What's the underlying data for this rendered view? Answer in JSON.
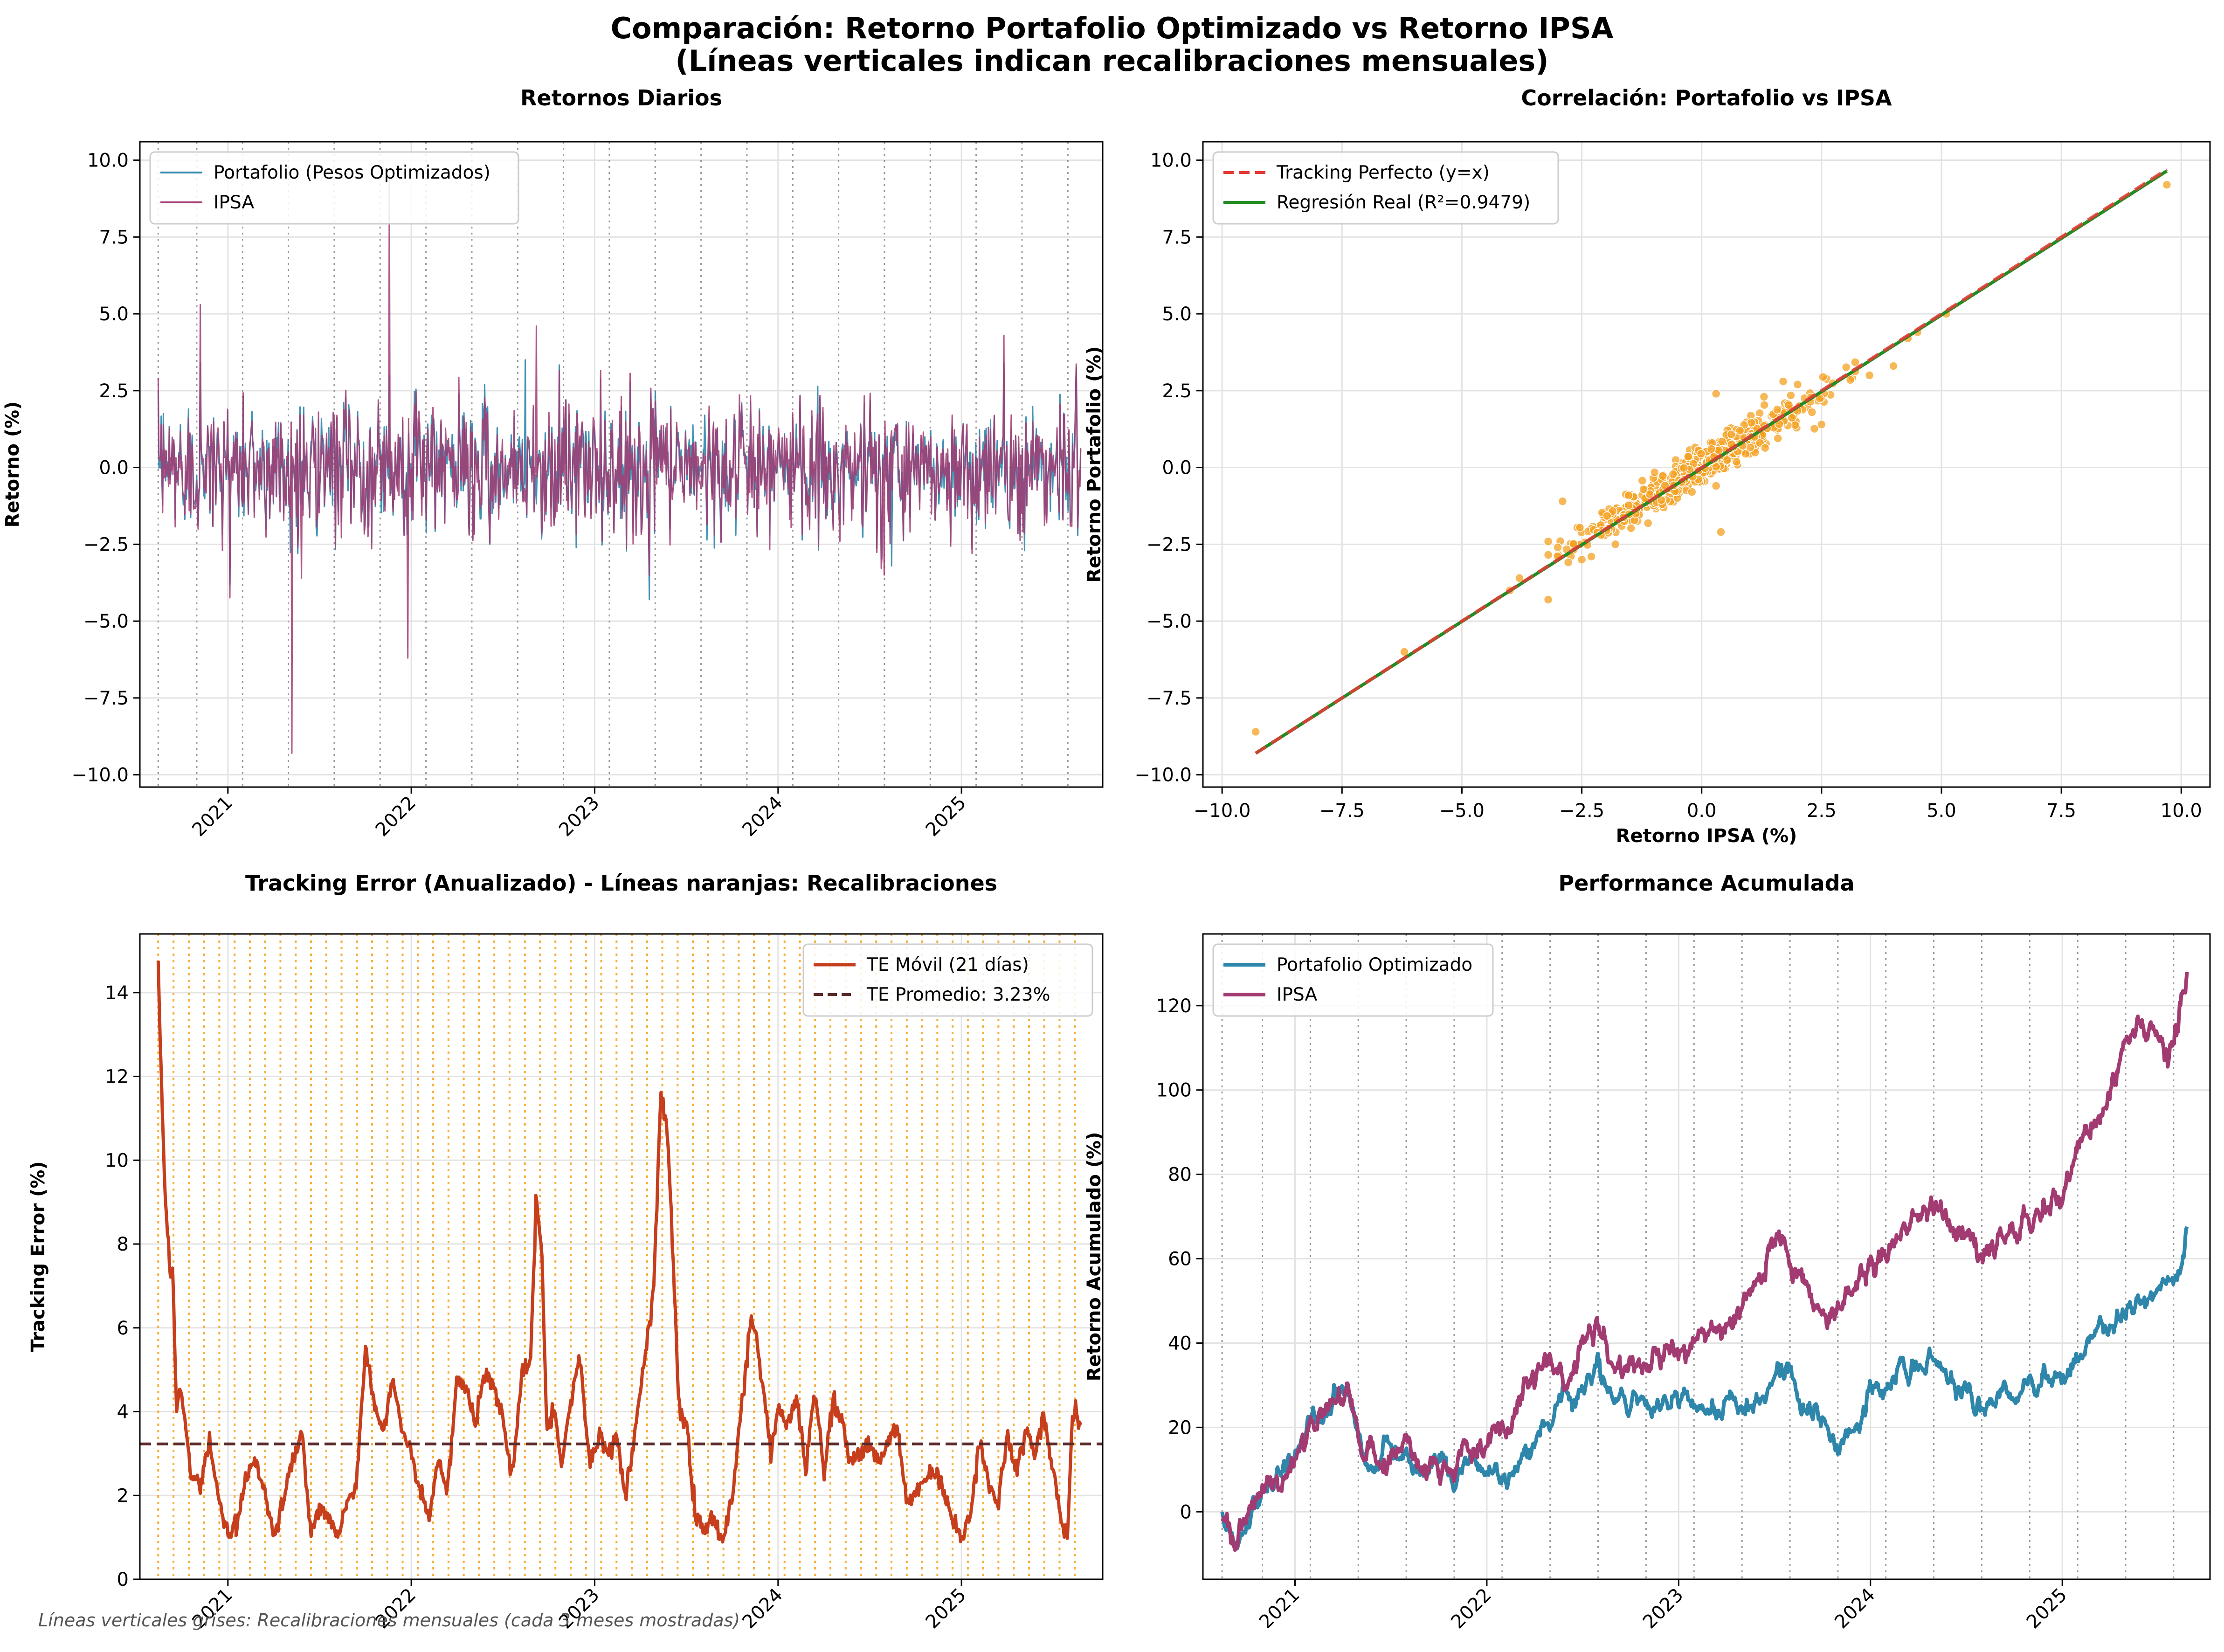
{
  "figure": {
    "suptitle_line1": "Comparación: Retorno Portafolio Optimizado vs Retorno IPSA",
    "suptitle_line2": "(Líneas verticales indican recalibraciones mensuales)",
    "footnote": "Líneas verticales grises: Recalibraciones mensuales (cada 3 meses mostradas)"
  },
  "colors": {
    "portfolio": "#2e86ab",
    "ipsa": "#a23b72",
    "scatter": "#f4a020",
    "tracking_perfect": "#e53935",
    "regression": "#228b22",
    "te_line": "#c73e1d",
    "te_mean": "#5a2a2a",
    "recal_gray": "#999999",
    "recal_orange": "#f5a623"
  },
  "chart_data": [
    {
      "id": "daily",
      "type": "line",
      "title": "Retornos Diarios",
      "xlabel": "",
      "ylabel": "Retorno (%)",
      "xlim": [
        2020.52,
        2025.77
      ],
      "ylim": [
        -10.4,
        10.6
      ],
      "yticks": [
        -10.0,
        -7.5,
        -5.0,
        -2.5,
        0.0,
        2.5,
        5.0,
        7.5,
        10.0
      ],
      "ytick_labels": [
        "−10.0",
        "−7.5",
        "−5.0",
        "−2.5",
        "0.0",
        "2.5",
        "5.0",
        "7.5",
        "10.0"
      ],
      "xticks": [
        2021,
        2022,
        2023,
        2024,
        2025
      ],
      "xtick_labels": [
        "2021",
        "2022",
        "2023",
        "2024",
        "2025"
      ],
      "grid": true,
      "legend": "upper-left",
      "recalibration_lines": [
        2020.62,
        2020.83,
        2021.08,
        2021.33,
        2021.58,
        2021.83,
        2022.08,
        2022.33,
        2022.58,
        2022.83,
        2023.08,
        2023.33,
        2023.58,
        2023.83,
        2024.08,
        2024.33,
        2024.58,
        2024.83,
        2025.08,
        2025.33,
        2025.58
      ],
      "series": [
        {
          "name": "Portafolio (Pesos Optimizados)",
          "color_key": "portfolio",
          "x_start": 2020.62,
          "x_end": 2025.65,
          "count": 1250,
          "volatility": 1.05,
          "spikes": [
            [
              2020.85,
              3.4
            ],
            [
              2021.38,
              -2.8
            ],
            [
              2021.88,
              3.0
            ],
            [
              2022.62,
              3.5
            ],
            [
              2023.3,
              -4.3
            ],
            [
              2023.6,
              1.7
            ],
            [
              2024.62,
              -3.2
            ],
            [
              2025.23,
              3.4
            ]
          ]
        },
        {
          "name": "IPSA",
          "color_key": "ipsa",
          "x_start": 2020.62,
          "x_end": 2025.65,
          "count": 1250,
          "volatility": 1.05,
          "spikes": [
            [
              2020.85,
              5.3
            ],
            [
              2021.35,
              -9.3
            ],
            [
              2021.4,
              -3.6
            ],
            [
              2021.88,
              9.5
            ],
            [
              2021.98,
              -6.2
            ],
            [
              2022.68,
              4.6
            ],
            [
              2023.3,
              -3.5
            ],
            [
              2024.58,
              -3.5
            ],
            [
              2025.23,
              4.3
            ]
          ]
        }
      ]
    },
    {
      "id": "scatter",
      "type": "scatter",
      "title": "Correlación: Portafolio vs IPSA",
      "xlabel": "Retorno IPSA (%)",
      "ylabel": "Retorno Portafolio (%)",
      "xlim": [
        -10.4,
        10.6
      ],
      "ylim": [
        -10.4,
        10.6
      ],
      "xticks": [
        -10.0,
        -7.5,
        -5.0,
        -2.5,
        0.0,
        2.5,
        5.0,
        7.5,
        10.0
      ],
      "xtick_labels": [
        "−10.0",
        "−7.5",
        "−5.0",
        "−2.5",
        "0.0",
        "2.5",
        "5.0",
        "7.5",
        "10.0"
      ],
      "yticks": [
        -10.0,
        -7.5,
        -5.0,
        -2.5,
        0.0,
        2.5,
        5.0,
        7.5,
        10.0
      ],
      "ytick_labels": [
        "−10.0",
        "−7.5",
        "−5.0",
        "−2.5",
        "0.0",
        "2.5",
        "5.0",
        "7.5",
        "10.0"
      ],
      "grid": true,
      "legend": "upper-left",
      "lines": [
        {
          "name": "Tracking Perfecto (y=x)",
          "color_key": "tracking_perfect",
          "style": "dashed",
          "x": [
            -9.3,
            9.7
          ],
          "y": [
            -9.3,
            9.7
          ]
        },
        {
          "name": "Regresión Real (R²=0.9479)",
          "color_key": "regression",
          "style": "solid",
          "x": [
            -9.3,
            9.7
          ],
          "y": [
            -9.3,
            9.65
          ]
        }
      ],
      "cloud": {
        "count": 600,
        "slope": 0.93,
        "x_sd": 1.25,
        "noise_sd": 0.3
      },
      "points": [
        [
          -9.3,
          -8.6
        ],
        [
          -6.2,
          -6.0
        ],
        [
          -4.0,
          -4.0
        ],
        [
          -3.8,
          -3.6
        ],
        [
          -3.2,
          -4.3
        ],
        [
          -3.0,
          -2.6
        ],
        [
          -2.9,
          -1.1
        ],
        [
          -2.5,
          -3.0
        ],
        [
          -2.3,
          -2.9
        ],
        [
          -2.1,
          -2.2
        ],
        [
          -1.8,
          -2.5
        ],
        [
          0.3,
          -0.6
        ],
        [
          0.2,
          0.6
        ],
        [
          0.8,
          1.2
        ],
        [
          0.3,
          2.4
        ],
        [
          0.4,
          -2.1
        ],
        [
          1.3,
          2.3
        ],
        [
          1.7,
          2.8
        ],
        [
          2.0,
          2.7
        ],
        [
          2.5,
          1.4
        ],
        [
          2.3,
          1.8
        ],
        [
          3.5,
          3.0
        ],
        [
          4.0,
          3.3
        ],
        [
          4.3,
          4.2
        ],
        [
          4.5,
          4.4
        ],
        [
          5.1,
          5.0
        ],
        [
          9.7,
          9.2
        ]
      ]
    },
    {
      "id": "te",
      "type": "line",
      "title": "Tracking Error (Anualizado) - Líneas naranjas: Recalibraciones",
      "xlabel": "",
      "ylabel": "Tracking Error (%)",
      "xlim": [
        2020.52,
        2025.77
      ],
      "ylim": [
        0,
        15.4
      ],
      "yticks": [
        0,
        2,
        4,
        6,
        8,
        10,
        12,
        14
      ],
      "ytick_labels": [
        "0",
        "2",
        "4",
        "6",
        "8",
        "10",
        "12",
        "14"
      ],
      "xticks": [
        2021,
        2022,
        2023,
        2024,
        2025
      ],
      "xtick_labels": [
        "2021",
        "2022",
        "2023",
        "2024",
        "2025"
      ],
      "grid": true,
      "legend": "upper-right",
      "recalibration_start": 2020.62,
      "recalibration_step": 0.0833,
      "recalibration_count": 61,
      "mean_te": 3.23,
      "series_names": [
        "TE Móvil (21 días)",
        "TE Promedio: 3.23%"
      ],
      "te_series": {
        "x": [
          2020.62,
          2020.64,
          2020.66,
          2020.68,
          2020.7,
          2020.72,
          2020.74,
          2020.76,
          2020.8,
          2020.85,
          2020.9,
          2020.95,
          2021.0,
          2021.05,
          2021.1,
          2021.15,
          2021.2,
          2021.25,
          2021.3,
          2021.35,
          2021.4,
          2021.45,
          2021.5,
          2021.55,
          2021.6,
          2021.65,
          2021.7,
          2021.75,
          2021.8,
          2021.85,
          2021.9,
          2021.95,
          2022.0,
          2022.05,
          2022.1,
          2022.15,
          2022.2,
          2022.25,
          2022.3,
          2022.35,
          2022.4,
          2022.45,
          2022.5,
          2022.55,
          2022.6,
          2022.65,
          2022.68,
          2022.71,
          2022.74,
          2022.78,
          2022.82,
          2022.87,
          2022.92,
          2022.97,
          2023.02,
          2023.07,
          2023.12,
          2023.17,
          2023.22,
          2023.27,
          2023.32,
          2023.36,
          2023.39,
          2023.42,
          2023.46,
          2023.5,
          2023.55,
          2023.6,
          2023.65,
          2023.7,
          2023.75,
          2023.8,
          2023.85,
          2023.88,
          2023.92,
          2023.96,
          2024.0,
          2024.05,
          2024.1,
          2024.15,
          2024.2,
          2024.25,
          2024.3,
          2024.35,
          2024.4,
          2024.45,
          2024.5,
          2024.55,
          2024.6,
          2024.65,
          2024.7,
          2024.75,
          2024.8,
          2024.85,
          2024.9,
          2024.95,
          2025.0,
          2025.05,
          2025.1,
          2025.15,
          2025.2,
          2025.25,
          2025.3,
          2025.35,
          2025.4,
          2025.45,
          2025.5,
          2025.55,
          2025.58,
          2025.6,
          2025.62,
          2025.65
        ],
        "y": [
          14.7,
          11.5,
          9.0,
          7.6,
          7.4,
          3.8,
          4.6,
          4.0,
          2.5,
          2.3,
          3.3,
          2.0,
          1.0,
          1.3,
          2.4,
          2.9,
          2.1,
          1.1,
          1.8,
          2.8,
          3.5,
          1.2,
          1.6,
          1.5,
          1.0,
          1.8,
          2.3,
          5.5,
          4.2,
          3.5,
          4.9,
          3.5,
          3.0,
          2.0,
          1.6,
          2.8,
          2.2,
          4.9,
          4.5,
          3.8,
          4.9,
          4.6,
          3.8,
          2.4,
          4.8,
          5.2,
          9.1,
          8.0,
          3.6,
          4.1,
          2.8,
          4.3,
          5.3,
          2.8,
          3.5,
          3.0,
          3.4,
          2.0,
          3.5,
          5.2,
          6.8,
          11.5,
          11.0,
          8.5,
          4.0,
          3.8,
          1.5,
          1.2,
          1.5,
          0.9,
          2.0,
          4.0,
          6.3,
          5.8,
          4.5,
          3.0,
          4.2,
          3.6,
          4.4,
          2.6,
          4.5,
          2.5,
          4.3,
          3.8,
          2.7,
          3.0,
          3.2,
          2.8,
          3.3,
          3.6,
          1.8,
          2.0,
          2.4,
          2.7,
          2.2,
          1.5,
          0.9,
          1.6,
          3.3,
          2.2,
          1.9,
          3.4,
          2.6,
          3.6,
          3.0,
          3.9,
          2.6,
          1.2,
          1.0,
          3.5,
          4.0,
          3.8
        ]
      }
    },
    {
      "id": "cumulative",
      "type": "line",
      "title": "Performance Acumulada",
      "xlabel": "",
      "ylabel": "Retorno Acumulado (%)",
      "xlim": [
        2020.52,
        2025.77
      ],
      "ylim": [
        -16,
        137
      ],
      "yticks": [
        0,
        20,
        40,
        60,
        80,
        100,
        120
      ],
      "ytick_labels": [
        "0",
        "20",
        "40",
        "60",
        "80",
        "100",
        "120"
      ],
      "xticks": [
        2021,
        2022,
        2023,
        2024,
        2025
      ],
      "xtick_labels": [
        "2021",
        "2022",
        "2023",
        "2024",
        "2025"
      ],
      "grid": true,
      "legend": "upper-left",
      "recalibration_lines": [
        2020.62,
        2020.83,
        2021.08,
        2021.33,
        2021.58,
        2021.83,
        2022.08,
        2022.33,
        2022.58,
        2022.83,
        2023.08,
        2023.33,
        2023.58,
        2023.83,
        2024.08,
        2024.33,
        2024.58,
        2024.83,
        2025.08,
        2025.33,
        2025.58
      ],
      "series": [
        {
          "name": "Portafolio Optimizado",
          "color_key": "portfolio",
          "x": [
            2020.62,
            2020.7,
            2020.78,
            2020.86,
            2020.95,
            2021.05,
            2021.12,
            2021.2,
            2021.28,
            2021.35,
            2021.42,
            2021.5,
            2021.58,
            2021.66,
            2021.75,
            2021.83,
            2021.92,
            2022.0,
            2022.05,
            2022.1,
            2022.18,
            2022.25,
            2022.33,
            2022.42,
            2022.5,
            2022.58,
            2022.65,
            2022.75,
            2022.85,
            2022.95,
            2023.05,
            2023.15,
            2023.25,
            2023.35,
            2023.45,
            2023.52,
            2023.58,
            2023.66,
            2023.75,
            2023.83,
            2023.92,
            2024.0,
            2024.08,
            2024.17,
            2024.25,
            2024.33,
            2024.42,
            2024.5,
            2024.58,
            2024.67,
            2024.75,
            2024.83,
            2024.92,
            2025.0,
            2025.08,
            2025.17,
            2025.25,
            2025.33,
            2025.42,
            2025.5,
            2025.55,
            2025.6,
            2025.65
          ],
          "y": [
            0,
            -8,
            0,
            8,
            8,
            18,
            22,
            27,
            28,
            14,
            12,
            14,
            15,
            10,
            12,
            6,
            14,
            8,
            12,
            5,
            14,
            18,
            22,
            26,
            30,
            33,
            28,
            26,
            28,
            25,
            27,
            22,
            26,
            24,
            28,
            35,
            32,
            24,
            20,
            16,
            22,
            28,
            30,
            35,
            34,
            36,
            30,
            28,
            25,
            28,
            27,
            30,
            32,
            30,
            36,
            42,
            44,
            48,
            52,
            52,
            54,
            55,
            67
          ]
        },
        {
          "name": "IPSA",
          "color_key": "ipsa",
          "x": [
            2020.62,
            2020.7,
            2020.78,
            2020.86,
            2020.95,
            2021.05,
            2021.12,
            2021.2,
            2021.28,
            2021.35,
            2021.42,
            2021.5,
            2021.58,
            2021.66,
            2021.75,
            2021.83,
            2021.92,
            2022.0,
            2022.05,
            2022.1,
            2022.18,
            2022.25,
            2022.33,
            2022.42,
            2022.5,
            2022.58,
            2022.65,
            2022.75,
            2022.85,
            2022.95,
            2023.05,
            2023.15,
            2023.25,
            2023.35,
            2023.45,
            2023.52,
            2023.58,
            2023.66,
            2023.75,
            2023.83,
            2023.92,
            2024.0,
            2024.08,
            2024.17,
            2024.25,
            2024.33,
            2024.42,
            2024.5,
            2024.58,
            2024.67,
            2024.75,
            2024.83,
            2024.92,
            2025.0,
            2025.08,
            2025.17,
            2025.25,
            2025.33,
            2025.42,
            2025.5,
            2025.55,
            2025.6,
            2025.65
          ],
          "y": [
            0,
            -8,
            0,
            8,
            8,
            18,
            22,
            27,
            28,
            14,
            12,
            14,
            15,
            10,
            12,
            10,
            18,
            15,
            20,
            19,
            28,
            30,
            38,
            30,
            40,
            46,
            35,
            36,
            34,
            38,
            38,
            44,
            42,
            50,
            55,
            65,
            60,
            55,
            45,
            48,
            55,
            58,
            60,
            68,
            70,
            72,
            68,
            66,
            62,
            65,
            68,
            70,
            72,
            75,
            88,
            90,
            100,
            110,
            118,
            112,
            110,
            113,
            129
          ]
        }
      ]
    }
  ]
}
